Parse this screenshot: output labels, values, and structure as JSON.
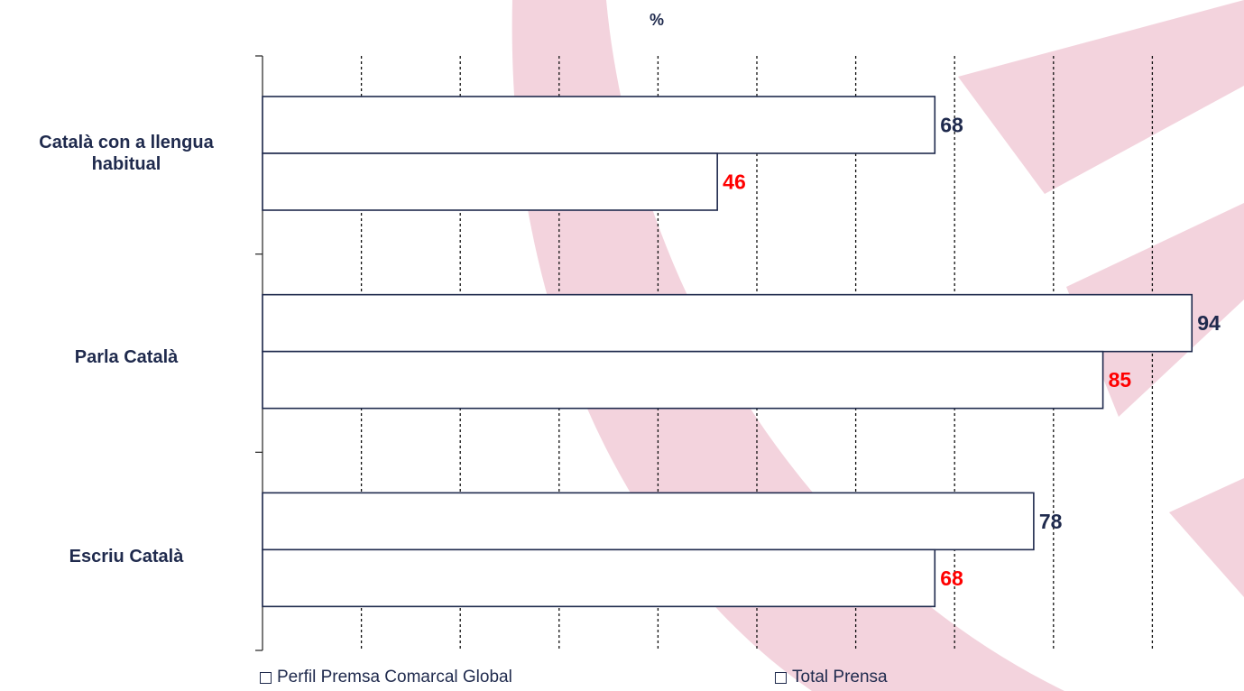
{
  "chart_data": {
    "type": "bar",
    "orientation": "horizontal",
    "unit_label": "%",
    "categories": [
      "Català con a llengua habitual",
      "Parla Català",
      "Escriu Català"
    ],
    "series": [
      {
        "name": "Perfil Premsa Comarcal Global",
        "values": [
          68,
          94,
          78
        ],
        "label_color": "#1f2a4d"
      },
      {
        "name": "Total Prensa",
        "values": [
          46,
          85,
          68
        ],
        "label_color": "#ff0000"
      }
    ],
    "xlim": [
      0,
      100
    ],
    "gridlines": "vertical-dotted",
    "legend_position": "bottom",
    "colors": {
      "bar_fill": "#ffffff",
      "bar_stroke": "#1f2a4d",
      "background_shape": "#f0c6d3"
    }
  }
}
